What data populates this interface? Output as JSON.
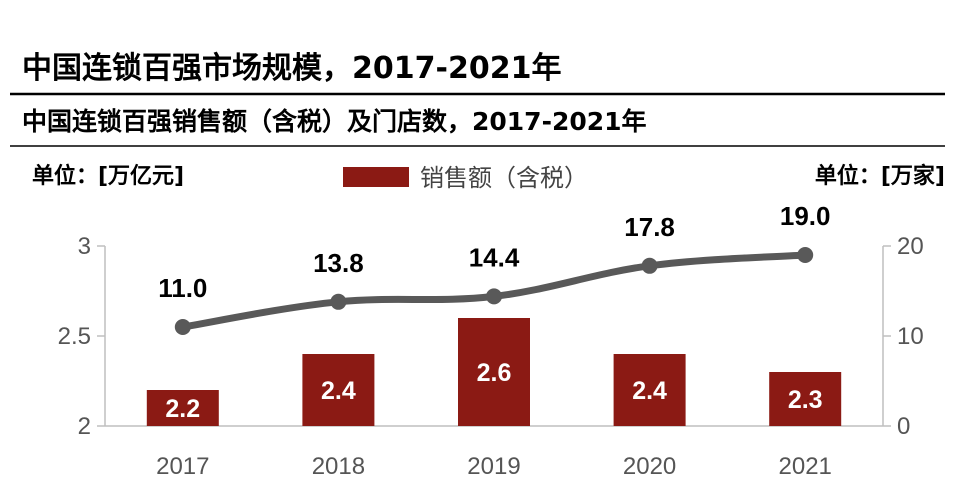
{
  "page": {
    "title": "中国连锁百强市场规模，2017-2021年",
    "subtitle": "中国连锁百强销售额（含税）及门店数，2017-2021年",
    "left_unit": "单位：[万亿元]",
    "right_unit": "单位：[万家]",
    "legend_label": "销售额（含税）"
  },
  "chart_data": {
    "type": "bar",
    "title": "中国连锁百强销售额（含税）及门店数，2017-2021年",
    "categories": [
      "2017",
      "2018",
      "2019",
      "2020",
      "2021"
    ],
    "series": [
      {
        "name": "销售额（含税）",
        "type": "bar",
        "axis": "left",
        "values": [
          2.2,
          2.4,
          2.6,
          2.4,
          2.3
        ],
        "labels": [
          "2.2",
          "2.4",
          "2.6",
          "2.4",
          "2.3"
        ]
      },
      {
        "type": "line",
        "axis": "right",
        "values": [
          11.0,
          13.8,
          14.4,
          17.8,
          19.0
        ],
        "labels": [
          "11.0",
          "13.8",
          "14.4",
          "17.8",
          "19.0"
        ]
      }
    ],
    "y_left": {
      "range": [
        2,
        3
      ],
      "ticks": [
        2,
        2.5,
        3
      ],
      "tick_labels": [
        "2",
        "2.5",
        "3"
      ],
      "label": "单位：[万亿元]"
    },
    "y_right": {
      "range": [
        0,
        20
      ],
      "ticks": [
        0,
        10,
        20
      ],
      "tick_labels": [
        "0",
        "10",
        "20"
      ],
      "label": "单位：[万家]"
    },
    "grid": false,
    "legend_position": "top-center",
    "colors": {
      "bar": "#8b1a14",
      "line": "#595959",
      "axis": "#bfbfbf",
      "rule": "#000000"
    }
  }
}
